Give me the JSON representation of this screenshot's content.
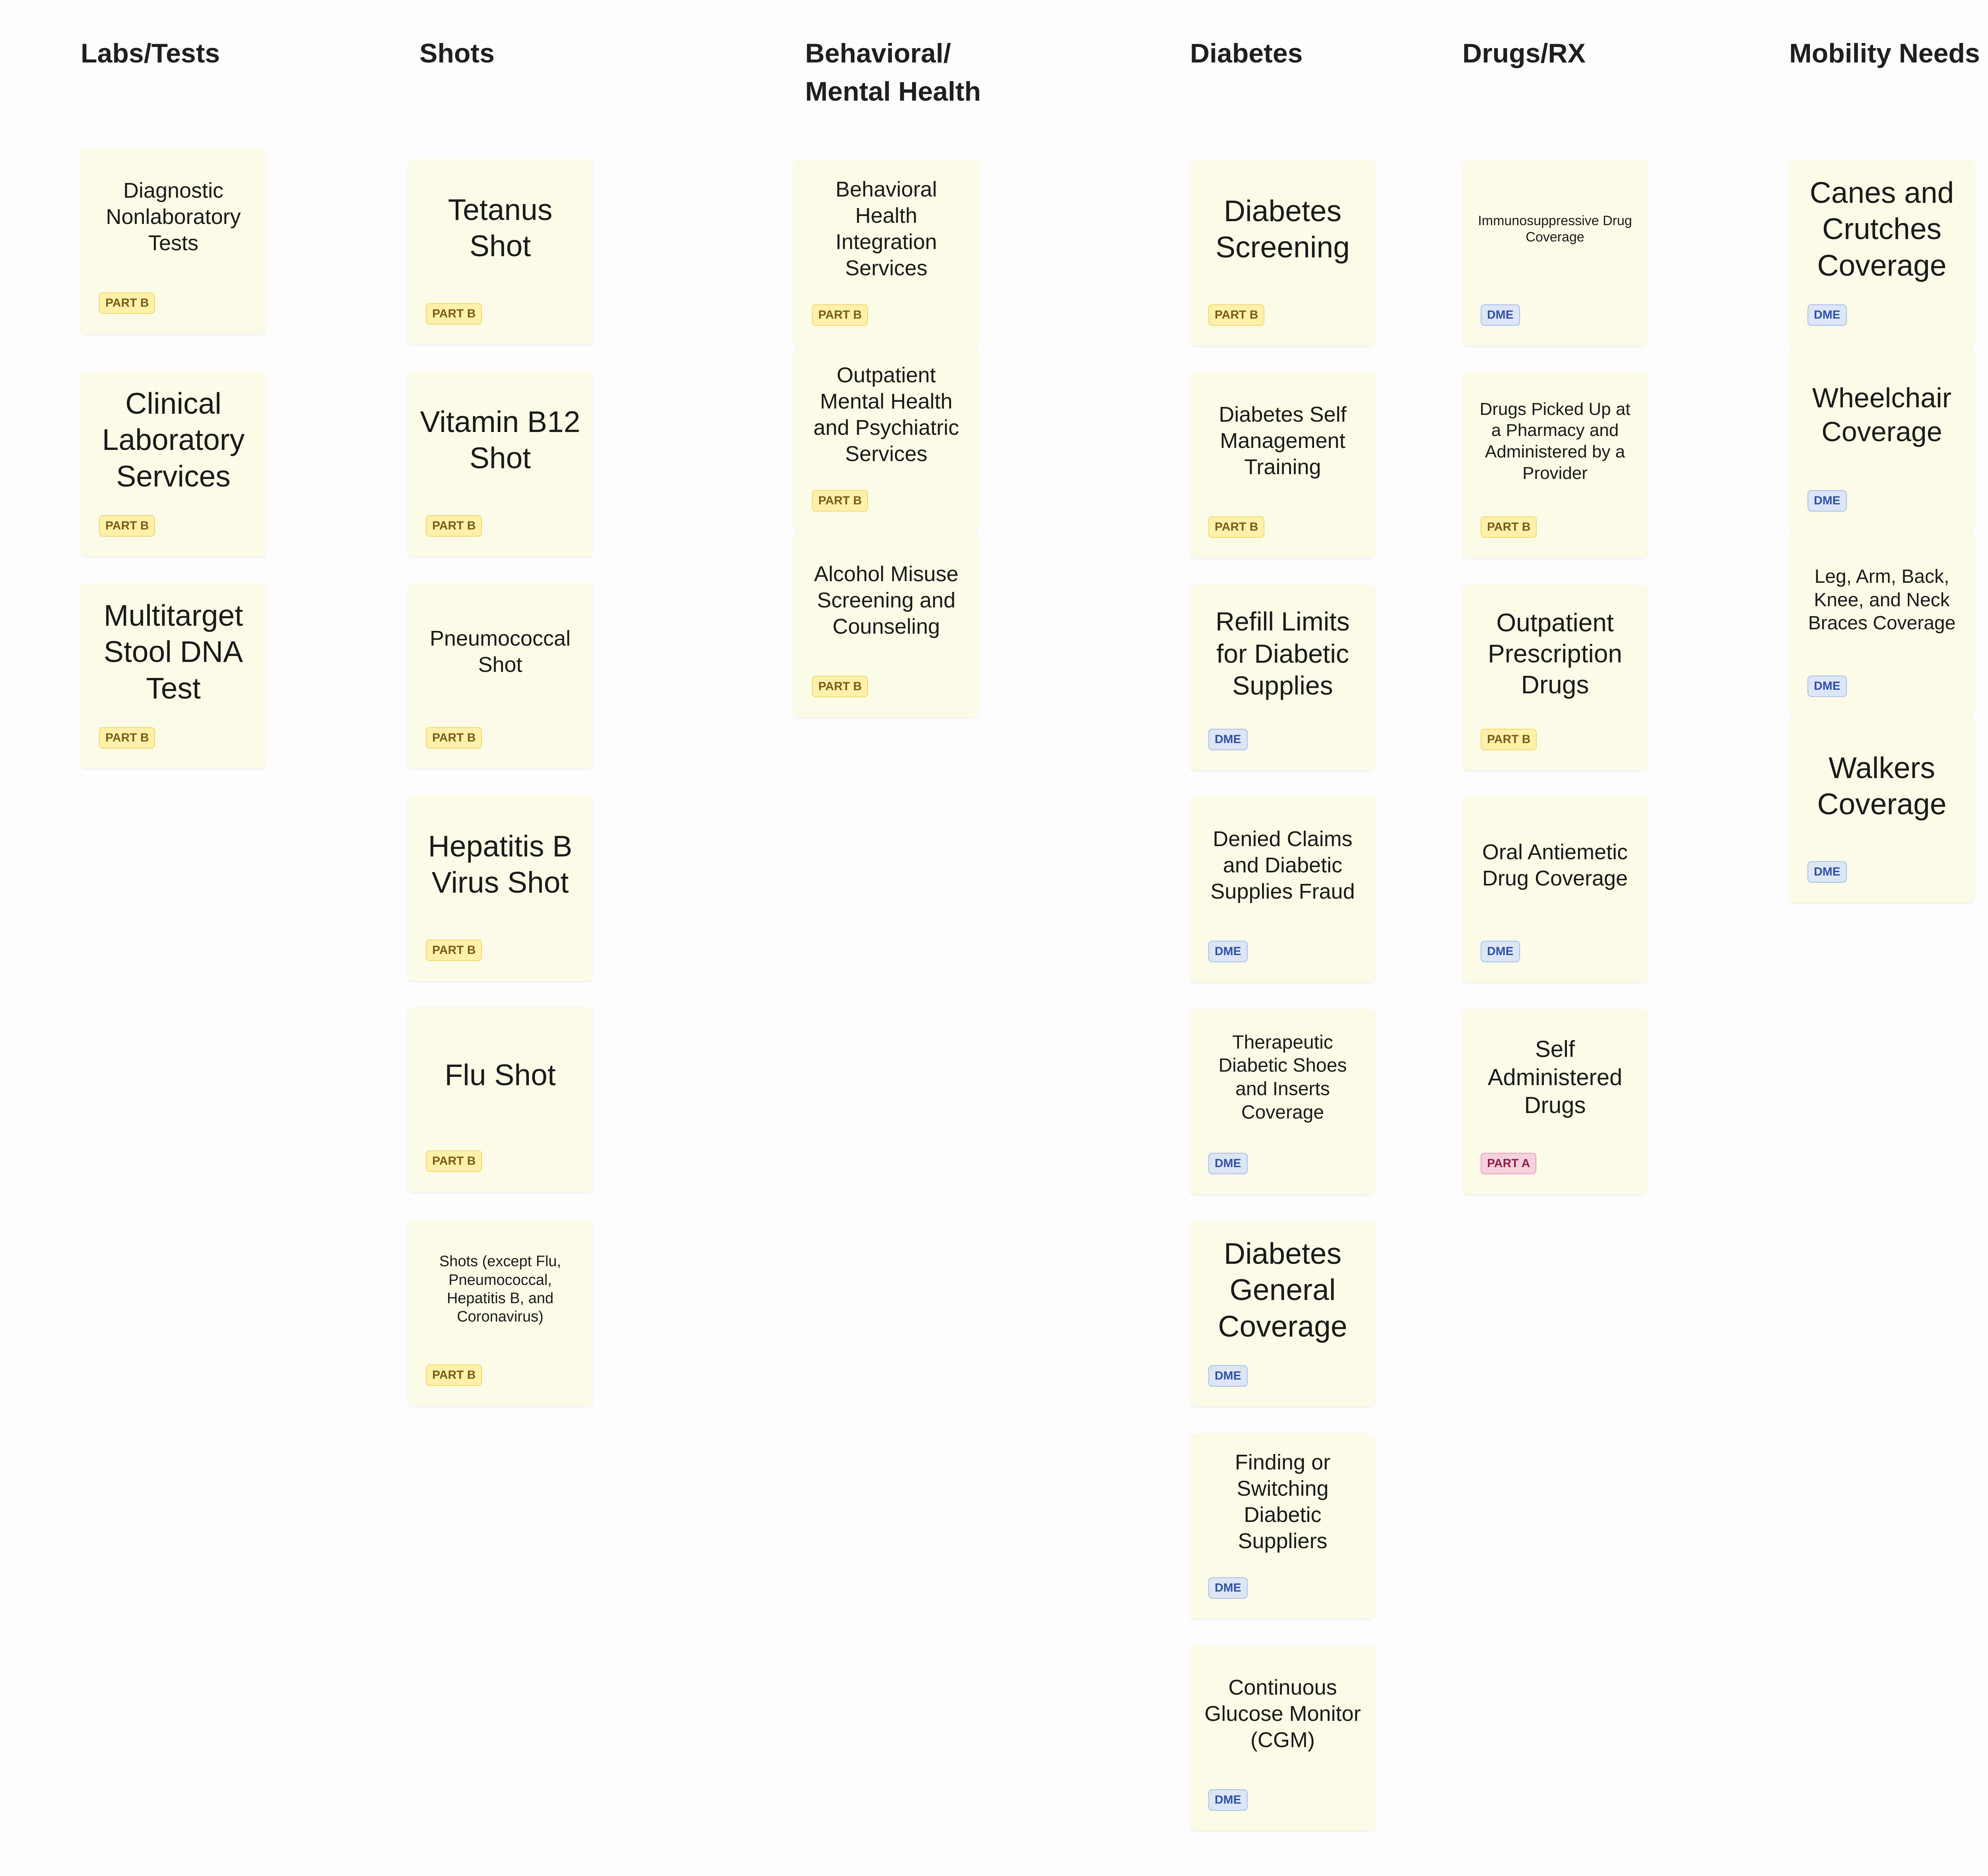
{
  "columns": [
    {
      "title": "Labs/Tests",
      "cards": [
        {
          "title": "Diagnostic Nonlaboratory Tests",
          "badge": "PART B"
        },
        {
          "title": "Clinical Laboratory Services",
          "badge": "PART B"
        },
        {
          "title": "Multitarget Stool DNA Test",
          "badge": "PART B"
        }
      ]
    },
    {
      "title": "Shots",
      "cards": [
        {
          "title": "Tetanus Shot",
          "badge": "PART B"
        },
        {
          "title": "Vitamin B12 Shot",
          "badge": "PART B"
        },
        {
          "title": "Pneumococcal Shot",
          "badge": "PART B"
        },
        {
          "title": "Hepatitis B Virus Shot",
          "badge": "PART B"
        },
        {
          "title": "Flu Shot",
          "badge": "PART B"
        },
        {
          "title": "Shots (except Flu, Pneumococcal, Hepatitis B, and Coronavirus)",
          "badge": "PART B"
        }
      ]
    },
    {
      "title": "Behavioral/ Mental Health",
      "cards": [
        {
          "title": "Behavioral Health Integration Services",
          "badge": "PART B"
        },
        {
          "title": "Outpatient Mental Health and Psychiatric Services",
          "badge": "PART B"
        },
        {
          "title": "Alcohol Misuse Screening and Counseling",
          "badge": "PART B"
        }
      ]
    },
    {
      "title": "Diabetes",
      "cards": [
        {
          "title": "Diabetes Screening",
          "badge": "PART B"
        },
        {
          "title": "Diabetes Self Management Training",
          "badge": "PART B"
        },
        {
          "title": "Refill Limits for Diabetic Supplies",
          "badge": "DME"
        },
        {
          "title": "Denied Claims and Diabetic Supplies Fraud",
          "badge": "DME"
        },
        {
          "title": "Therapeutic Diabetic Shoes and Inserts Coverage",
          "badge": "DME"
        },
        {
          "title": "Diabetes General Coverage",
          "badge": "DME"
        },
        {
          "title": "Finding or Switching Diabetic Suppliers",
          "badge": "DME"
        },
        {
          "title": "Continuous Glucose Monitor (CGM)",
          "badge": "DME"
        }
      ]
    },
    {
      "title": "Drugs/RX",
      "cards": [
        {
          "title": "Immunosuppressive Drug Coverage",
          "badge": "DME"
        },
        {
          "title": "Drugs Picked Up at a Pharmacy and Administered by a Provider",
          "badge": "PART B"
        },
        {
          "title": "Outpatient Prescription Drugs",
          "badge": "PART B"
        },
        {
          "title": "Oral Antiemetic Drug Coverage",
          "badge": "DME"
        },
        {
          "title": "Self Administered Drugs",
          "badge": "PART A"
        }
      ]
    },
    {
      "title": "Mobility Needs",
      "cards": [
        {
          "title": "Canes and Crutches Coverage",
          "badge": "DME"
        },
        {
          "title": "Wheelchair Coverage",
          "badge": "DME"
        },
        {
          "title": "Leg, Arm, Back, Knee, and Neck Braces Coverage",
          "badge": "DME"
        },
        {
          "title": "Walkers Coverage",
          "badge": "DME"
        }
      ]
    }
  ],
  "badge_colors": {
    "PART B": "#fff1a9",
    "DME": "#dde6f6",
    "PART A": "#f7d0de"
  }
}
